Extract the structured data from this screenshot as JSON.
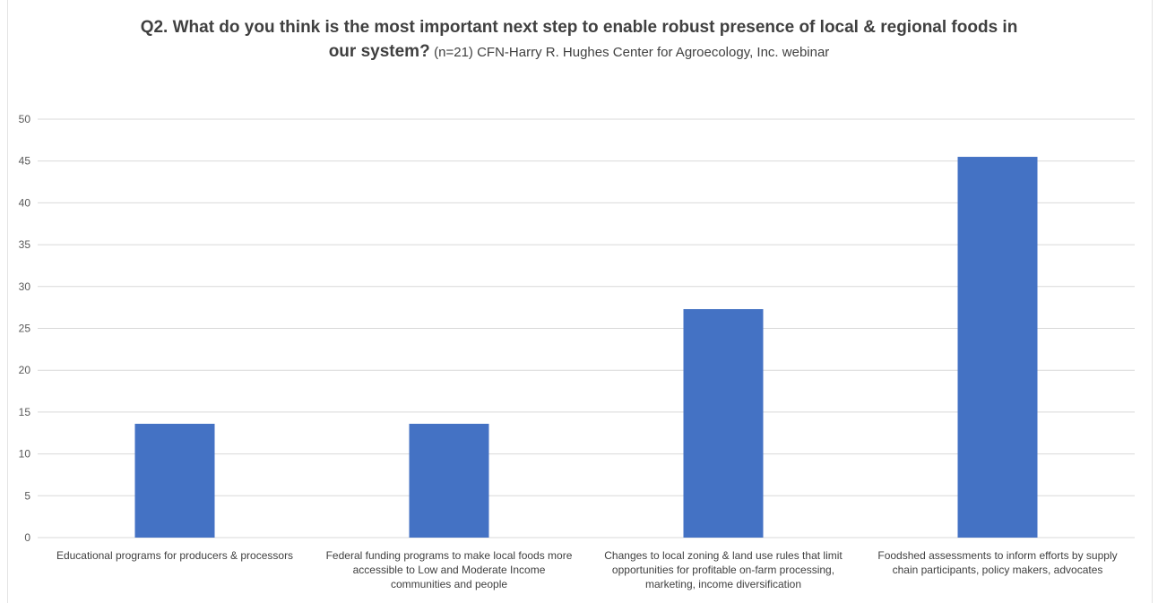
{
  "chart_data": {
    "type": "bar",
    "title": "Q2. What do you think is the most important next step to enable robust presence of local & regional foods in our system?",
    "title_line1": "Q2. What do you think is the most important next step to enable robust presence of local & regional foods in",
    "title_line2": "our system?",
    "subtitle": "(n=21) CFN-Harry R. Hughes Center for Agroecology, Inc. webinar",
    "xlabel": "",
    "ylabel": "",
    "categories": [
      "Educational programs for producers & processors",
      "Federal funding programs to make local foods more accessible to Low and Moderate Income communities and people",
      "Changes to local zoning & land use rules that limit opportunities for profitable on-farm processing, marketing, income diversification",
      "Foodshed assessments to inform efforts by supply chain participants, policy makers, advocates"
    ],
    "category_lines": [
      [
        "Educational programs for producers & processors"
      ],
      [
        "Federal funding programs to make local foods more",
        "accessible to Low and Moderate Income",
        "communities and people"
      ],
      [
        "Changes to local zoning & land use rules that limit",
        "opportunities for profitable on-farm processing,",
        "marketing, income diversification"
      ],
      [
        "Foodshed assessments to inform efforts by supply",
        "chain participants, policy makers, advocates"
      ]
    ],
    "values": [
      13.6,
      13.6,
      27.3,
      45.5
    ],
    "ylim": [
      0,
      50
    ],
    "yticks": [
      0,
      5,
      10,
      15,
      20,
      25,
      30,
      35,
      40,
      45,
      50
    ],
    "grid": true,
    "legend": "none",
    "bar_color": "#4472C4",
    "grid_color": "#D9D9D9"
  }
}
